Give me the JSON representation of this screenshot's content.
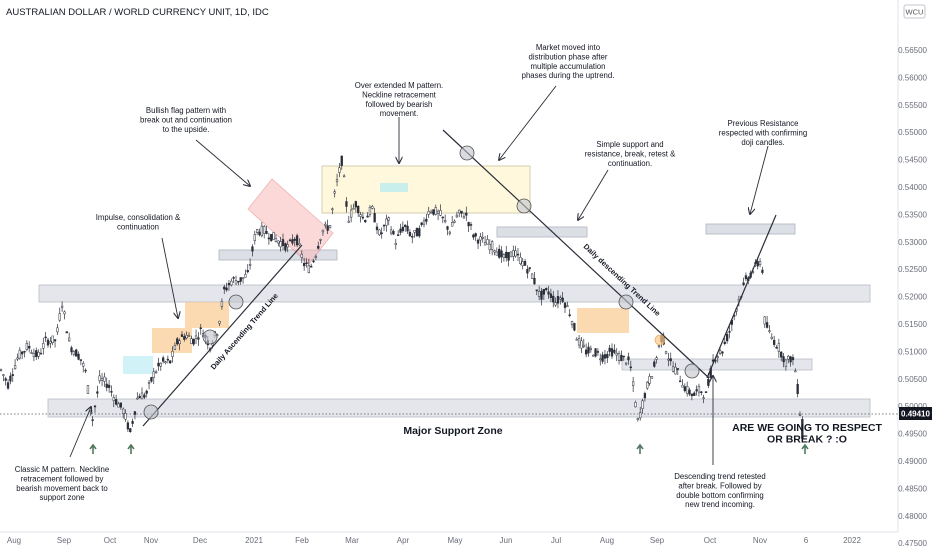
{
  "header": {
    "title": "AUSTRALIAN DOLLAR / WORLD CURRENCY UNIT, 1D, IDC",
    "badge": "WCU"
  },
  "price_tag": "0.49410",
  "chart_data": {
    "type": "candlestick",
    "title": "AUSTRALIAN DOLLAR / WORLD CURRENCY UNIT, 1D, IDC",
    "ylim": [
      0.47,
      0.565
    ],
    "y_ticks": [
      "0.56500",
      "0.56000",
      "0.55500",
      "0.55000",
      "0.54500",
      "0.54000",
      "0.53500",
      "0.53000",
      "0.52500",
      "0.52000",
      "0.51500",
      "0.51000",
      "0.50500",
      "0.50000",
      "0.49500",
      "0.49000",
      "0.48500",
      "0.48000",
      "0.47500"
    ],
    "x_ticks": [
      "Aug",
      "Sep",
      "Oct",
      "Nov",
      "Dec",
      "2021",
      "Feb",
      "Mar",
      "Apr",
      "May",
      "Jun",
      "Jul",
      "Aug",
      "Sep",
      "Oct",
      "Nov",
      "6",
      "2022"
    ],
    "last_price": 0.4941,
    "key_levels": [
      {
        "low": 0.4931,
        "high": 0.4966
      },
      {
        "low": 0.5143,
        "high": 0.5176
      },
      {
        "low": 0.5026,
        "high": 0.5045
      },
      {
        "low": 0.5263,
        "high": 0.5282
      },
      {
        "low": 0.5219,
        "high": 0.5238
      },
      {
        "low": 0.5275,
        "high": 0.5292
      }
    ],
    "path_anchors": [
      [
        0,
        0.507
      ],
      [
        8,
        0.504
      ],
      [
        18,
        0.509
      ],
      [
        28,
        0.511
      ],
      [
        38,
        0.509
      ],
      [
        46,
        0.512
      ],
      [
        56,
        0.512
      ],
      [
        62,
        0.519
      ],
      [
        70,
        0.511
      ],
      [
        80,
        0.509
      ],
      [
        86,
        0.506
      ],
      [
        92,
        0.497
      ],
      [
        100,
        0.505
      ],
      [
        108,
        0.504
      ],
      [
        116,
        0.501
      ],
      [
        124,
        0.499
      ],
      [
        130,
        0.495
      ],
      [
        138,
        0.502
      ],
      [
        146,
        0.502
      ],
      [
        154,
        0.506
      ],
      [
        162,
        0.508
      ],
      [
        170,
        0.508
      ],
      [
        178,
        0.512
      ],
      [
        186,
        0.513
      ],
      [
        194,
        0.512
      ],
      [
        202,
        0.514
      ],
      [
        210,
        0.511
      ],
      [
        218,
        0.514
      ],
      [
        224,
        0.521
      ],
      [
        232,
        0.523
      ],
      [
        240,
        0.523
      ],
      [
        248,
        0.524
      ],
      [
        256,
        0.532
      ],
      [
        264,
        0.532
      ],
      [
        272,
        0.531
      ],
      [
        280,
        0.53
      ],
      [
        288,
        0.529
      ],
      [
        296,
        0.531
      ],
      [
        304,
        0.526
      ],
      [
        310,
        0.525
      ],
      [
        316,
        0.528
      ],
      [
        322,
        0.532
      ],
      [
        330,
        0.533
      ],
      [
        336,
        0.54
      ],
      [
        342,
        0.545
      ],
      [
        348,
        0.534
      ],
      [
        356,
        0.537
      ],
      [
        364,
        0.534
      ],
      [
        372,
        0.536
      ],
      [
        380,
        0.531
      ],
      [
        388,
        0.534
      ],
      [
        396,
        0.53
      ],
      [
        404,
        0.533
      ],
      [
        412,
        0.531
      ],
      [
        420,
        0.532
      ],
      [
        430,
        0.536
      ],
      [
        440,
        0.535
      ],
      [
        450,
        0.532
      ],
      [
        458,
        0.535
      ],
      [
        466,
        0.535
      ],
      [
        474,
        0.531
      ],
      [
        484,
        0.53
      ],
      [
        494,
        0.529
      ],
      [
        504,
        0.527
      ],
      [
        514,
        0.528
      ],
      [
        524,
        0.526
      ],
      [
        532,
        0.524
      ],
      [
        540,
        0.52
      ],
      [
        548,
        0.521
      ],
      [
        556,
        0.519
      ],
      [
        562,
        0.52
      ],
      [
        570,
        0.517
      ],
      [
        578,
        0.512
      ],
      [
        586,
        0.51
      ],
      [
        594,
        0.51
      ],
      [
        602,
        0.509
      ],
      [
        612,
        0.51
      ],
      [
        620,
        0.509
      ],
      [
        630,
        0.508
      ],
      [
        638,
        0.497
      ],
      [
        646,
        0.503
      ],
      [
        654,
        0.507
      ],
      [
        662,
        0.513
      ],
      [
        670,
        0.508
      ],
      [
        678,
        0.506
      ],
      [
        686,
        0.503
      ],
      [
        694,
        0.502
      ],
      [
        700,
        0.503
      ],
      [
        706,
        0.502
      ],
      [
        714,
        0.509
      ],
      [
        722,
        0.51
      ],
      [
        730,
        0.514
      ],
      [
        738,
        0.519
      ],
      [
        746,
        0.523
      ],
      [
        754,
        0.525
      ],
      [
        762,
        0.527
      ],
      [
        764,
        0.516
      ],
      [
        770,
        0.513
      ],
      [
        778,
        0.511
      ],
      [
        786,
        0.508
      ],
      [
        792,
        0.509
      ],
      [
        796,
        0.506
      ],
      [
        800,
        0.499
      ],
      [
        804,
        0.4941
      ]
    ]
  },
  "annotations": {
    "classic_m": [
      "Classic M pattern. Neckline",
      "retracement followed by",
      "bearish movement back to",
      "support zone"
    ],
    "impulse": [
      "Impulse, consolidation &",
      "continuation"
    ],
    "bullish_flag": [
      "Bullish flag pattern with",
      "break out and continuation",
      "to the upside."
    ],
    "overextended_m": [
      "Over extended M pattern.",
      "Neckline retracement",
      "followed by bearish",
      "movement."
    ],
    "distribution": [
      "Market moved into",
      "distribution phase after",
      "multiple accumulation",
      "phases during the uptrend."
    ],
    "simple_support": [
      "Simple support and",
      "resistance, break, retest &",
      "continuation."
    ],
    "previous_resistance": [
      "Previous Resistance",
      "respected with confirming",
      "doji candles."
    ],
    "descending_retested": [
      "Descending trend retested",
      "after break. Followed by",
      "double bottom confirming",
      "new trend incoming."
    ],
    "major_support": "Major Support Zone",
    "question": [
      "ARE WE GOING TO RESPECT",
      "OR BREAK ? :O"
    ],
    "ascending_trend": "Daily Ascending Trend Line",
    "descending_trend": "Daily descending Trend Line"
  },
  "colors": {
    "up": "#26a69a",
    "down": "#ef5350",
    "candle": "#2a2e39",
    "zone": "#c6c9d2",
    "last_price_bg": "#131722",
    "arrow_green": "#4f7a5f"
  }
}
